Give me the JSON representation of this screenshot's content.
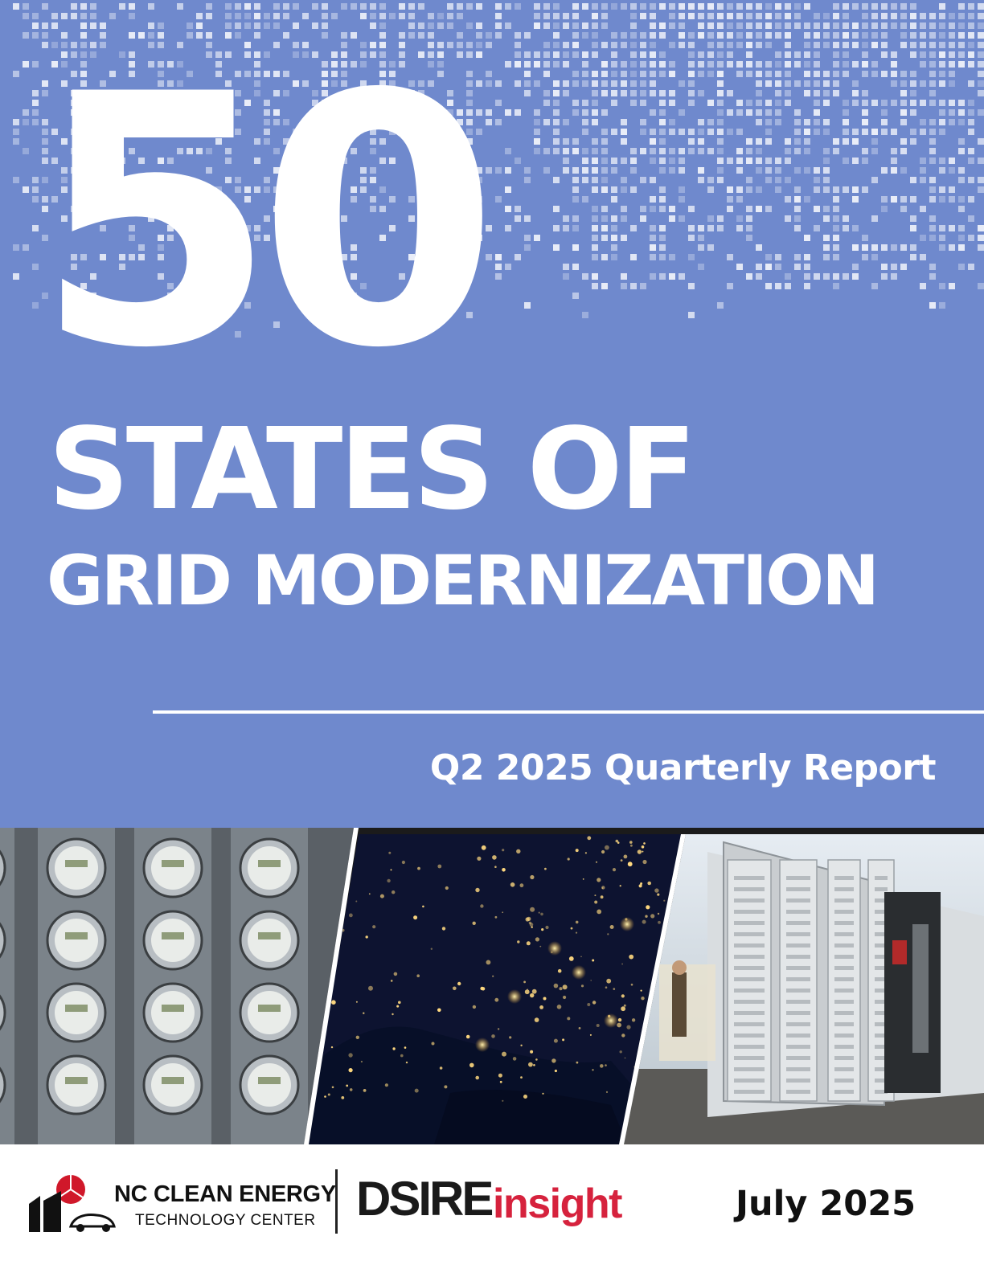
{
  "cover": {
    "number": "50",
    "line1": "STATES OF",
    "line2": "GRID MODERNIZATION",
    "subtitle": "Q2 2025 Quarterly Report"
  },
  "footer": {
    "nc_logo": {
      "title": "NC CLEAN ENERGY",
      "subtitle": "TECHNOLOGY CENTER"
    },
    "dsire_logo": {
      "part1": "DSIRE",
      "part2": "insight"
    },
    "date": "July 2025"
  },
  "colors": {
    "hero_background": "#6f89cd",
    "dsire_red": "#d6223d",
    "nc_logo_red": "#d0182a"
  },
  "images": [
    "electric-meters-photo",
    "us-night-lights-satellite-photo",
    "battery-storage-cabinet-photo"
  ]
}
